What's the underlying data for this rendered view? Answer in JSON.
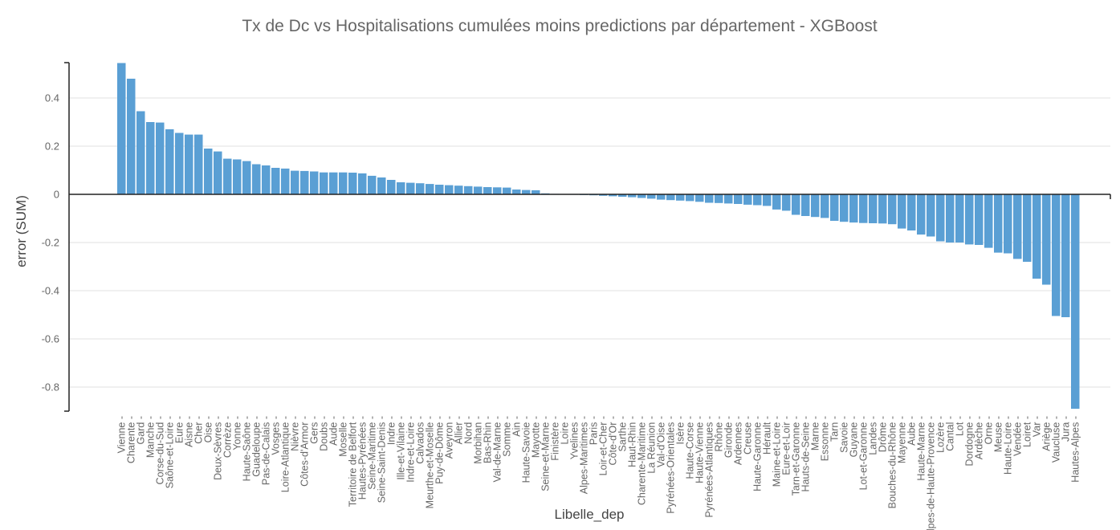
{
  "chart_data": {
    "type": "bar",
    "title": "Tx de Dc vs Hospitalisations cumulées moins predictions par département - XGBoost",
    "xlabel": "Libelle_dep",
    "ylabel": "error (SUM)",
    "ylim": [
      -0.9,
      0.55
    ],
    "yticks": [
      0.4,
      0.2,
      0,
      -0.2,
      -0.4,
      -0.6,
      -0.8
    ],
    "ytick_labels": [
      "0.4",
      "0.2",
      "0",
      "-0.2",
      "-0.4",
      "-0.6",
      "-0.8"
    ],
    "grid": true,
    "colors": {
      "bar": "#5a9fd4",
      "zero_line": "#222222",
      "grid": "#e1e1e1"
    },
    "categories": [
      "Vienne",
      "Charente",
      "Gard",
      "Manche",
      "Corse-du-Sud",
      "Saône-et-Loire",
      "Eure",
      "Aisne",
      "Cher",
      "Oise",
      "Deux-Sèvres",
      "Corrèze",
      "Yonne",
      "Haute-Saône",
      "Guadeloupe",
      "Pas-de-Calais",
      "Vosges",
      "Loire-Atlantique",
      "Nièvre",
      "Côtes-d'Armor",
      "Gers",
      "Doubs",
      "Aude",
      "Moselle",
      "Territoire de Belfort",
      "Hautes-Pyrénées",
      "Seine-Maritime",
      "Seine-Saint-Denis",
      "Indre",
      "Ille-et-Vilaine",
      "Indre-et-Loire",
      "Calvados",
      "Meurthe-et-Moselle",
      "Puy-de-Dôme",
      "Aveyron",
      "Allier",
      "Nord",
      "Morbihan",
      "Bas-Rhin",
      "Val-de-Marne",
      "Somme",
      "Ain",
      "Haute-Savoie",
      "Mayotte",
      "Seine-et-Marne",
      "Finistère",
      "Loire",
      "Yvelines",
      "Alpes-Maritimes",
      "Paris",
      "Loir-et-Cher",
      "Côte-d'Or",
      "Sarthe",
      "Haut-Rhin",
      "Charente-Maritime",
      "La Réunion",
      "Val-d'Oise",
      "Pyrénées-Orientales",
      "Isère",
      "Haute-Corse",
      "Haute-Vienne",
      "Pyrénées-Atlantiques",
      "Rhône",
      "Gironde",
      "Ardennes",
      "Creuse",
      "Haute-Garonne",
      "Hérault",
      "Maine-et-Loire",
      "Eure-et-Loir",
      "Tarn-et-Garonne",
      "Hauts-de-Seine",
      "Marne",
      "Essonne",
      "Tarn",
      "Savoie",
      "Guyane",
      "Lot-et-Garonne",
      "Landes",
      "Drôme",
      "Bouches-du-Rhône",
      "Mayenne",
      "Aube",
      "Haute-Marne",
      "Alpes-de-Haute-Provence",
      "Lozère",
      "Cantal",
      "Lot",
      "Dordogne",
      "Ardèche",
      "Orne",
      "Meuse",
      "Haute-Loire",
      "Vendée",
      "Loiret",
      "Var",
      "Ariège",
      "Vaucluse",
      "Jura",
      "Hautes-Alpes"
    ],
    "values": [
      0.545,
      0.48,
      0.345,
      0.3,
      0.298,
      0.27,
      0.255,
      0.248,
      0.248,
      0.19,
      0.178,
      0.148,
      0.145,
      0.138,
      0.125,
      0.12,
      0.11,
      0.107,
      0.098,
      0.097,
      0.095,
      0.091,
      0.091,
      0.091,
      0.09,
      0.087,
      0.077,
      0.07,
      0.06,
      0.05,
      0.048,
      0.046,
      0.043,
      0.04,
      0.038,
      0.036,
      0.034,
      0.032,
      0.03,
      0.029,
      0.028,
      0.02,
      0.018,
      0.017,
      0.004,
      0.002,
      0.001,
      -0.002,
      -0.003,
      -0.004,
      -0.006,
      -0.008,
      -0.01,
      -0.012,
      -0.015,
      -0.018,
      -0.022,
      -0.024,
      -0.026,
      -0.028,
      -0.031,
      -0.035,
      -0.036,
      -0.038,
      -0.04,
      -0.043,
      -0.045,
      -0.048,
      -0.063,
      -0.068,
      -0.085,
      -0.09,
      -0.094,
      -0.098,
      -0.11,
      -0.114,
      -0.117,
      -0.119,
      -0.12,
      -0.121,
      -0.124,
      -0.142,
      -0.15,
      -0.167,
      -0.175,
      -0.195,
      -0.2,
      -0.2,
      -0.208,
      -0.21,
      -0.222,
      -0.242,
      -0.245,
      -0.268,
      -0.28,
      -0.35,
      -0.375,
      -0.505,
      -0.51,
      -0.89
    ]
  }
}
